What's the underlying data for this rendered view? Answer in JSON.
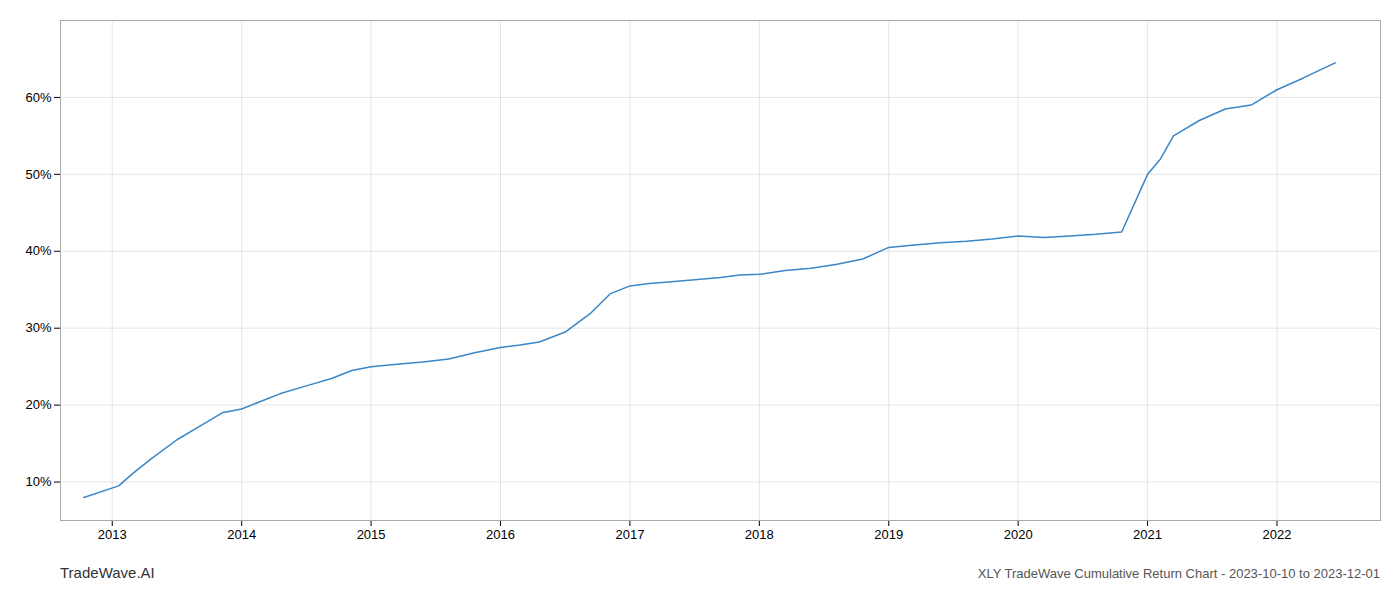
{
  "chart_data": {
    "type": "line",
    "title": "XLY TradeWave Cumulative Return Chart - 2023-10-10 to 2023-12-01",
    "annotations": [
      "TradeWave.AI"
    ],
    "x": [
      2012.78,
      2013.05,
      2013.15,
      2013.3,
      2013.5,
      2013.7,
      2013.85,
      2014.0,
      2014.15,
      2014.3,
      2014.5,
      2014.7,
      2014.85,
      2015.0,
      2015.2,
      2015.4,
      2015.6,
      2015.8,
      2016.0,
      2016.15,
      2016.3,
      2016.5,
      2016.7,
      2016.85,
      2017.0,
      2017.15,
      2017.3,
      2017.5,
      2017.7,
      2017.85,
      2018.0,
      2018.2,
      2018.4,
      2018.6,
      2018.8,
      2019.0,
      2019.2,
      2019.4,
      2019.6,
      2019.8,
      2020.0,
      2020.2,
      2020.4,
      2020.6,
      2020.8,
      2021.0,
      2021.1,
      2021.2,
      2021.4,
      2021.6,
      2021.8,
      2022.0,
      2022.2,
      2022.45
    ],
    "values": [
      8.0,
      9.5,
      11.0,
      13.0,
      15.5,
      17.5,
      19.0,
      19.5,
      20.5,
      21.5,
      22.5,
      23.5,
      24.5,
      25.0,
      25.3,
      25.6,
      26.0,
      26.8,
      27.5,
      27.8,
      28.2,
      29.5,
      32.0,
      34.5,
      35.5,
      35.8,
      36.0,
      36.3,
      36.6,
      36.9,
      37.0,
      37.5,
      37.8,
      38.3,
      39.0,
      40.5,
      40.8,
      41.1,
      41.3,
      41.6,
      42.0,
      41.8,
      42.0,
      42.2,
      42.5,
      50.0,
      52.0,
      55.0,
      57.0,
      58.5,
      59.0,
      61.0,
      62.5,
      64.5
    ],
    "color": "#3a87c8",
    "xlim": [
      2012.6,
      2022.8
    ],
    "ylim": [
      5,
      70
    ],
    "xticks": [
      2013,
      2014,
      2015,
      2016,
      2017,
      2018,
      2019,
      2020,
      2021,
      2022
    ],
    "yticks": [
      {
        "value": 10,
        "label": "10%"
      },
      {
        "value": 20,
        "label": "20%"
      },
      {
        "value": 30,
        "label": "30%"
      },
      {
        "value": 40,
        "label": "40%"
      },
      {
        "value": 50,
        "label": "50%"
      },
      {
        "value": 60,
        "label": "60%"
      }
    ],
    "grid": true
  }
}
